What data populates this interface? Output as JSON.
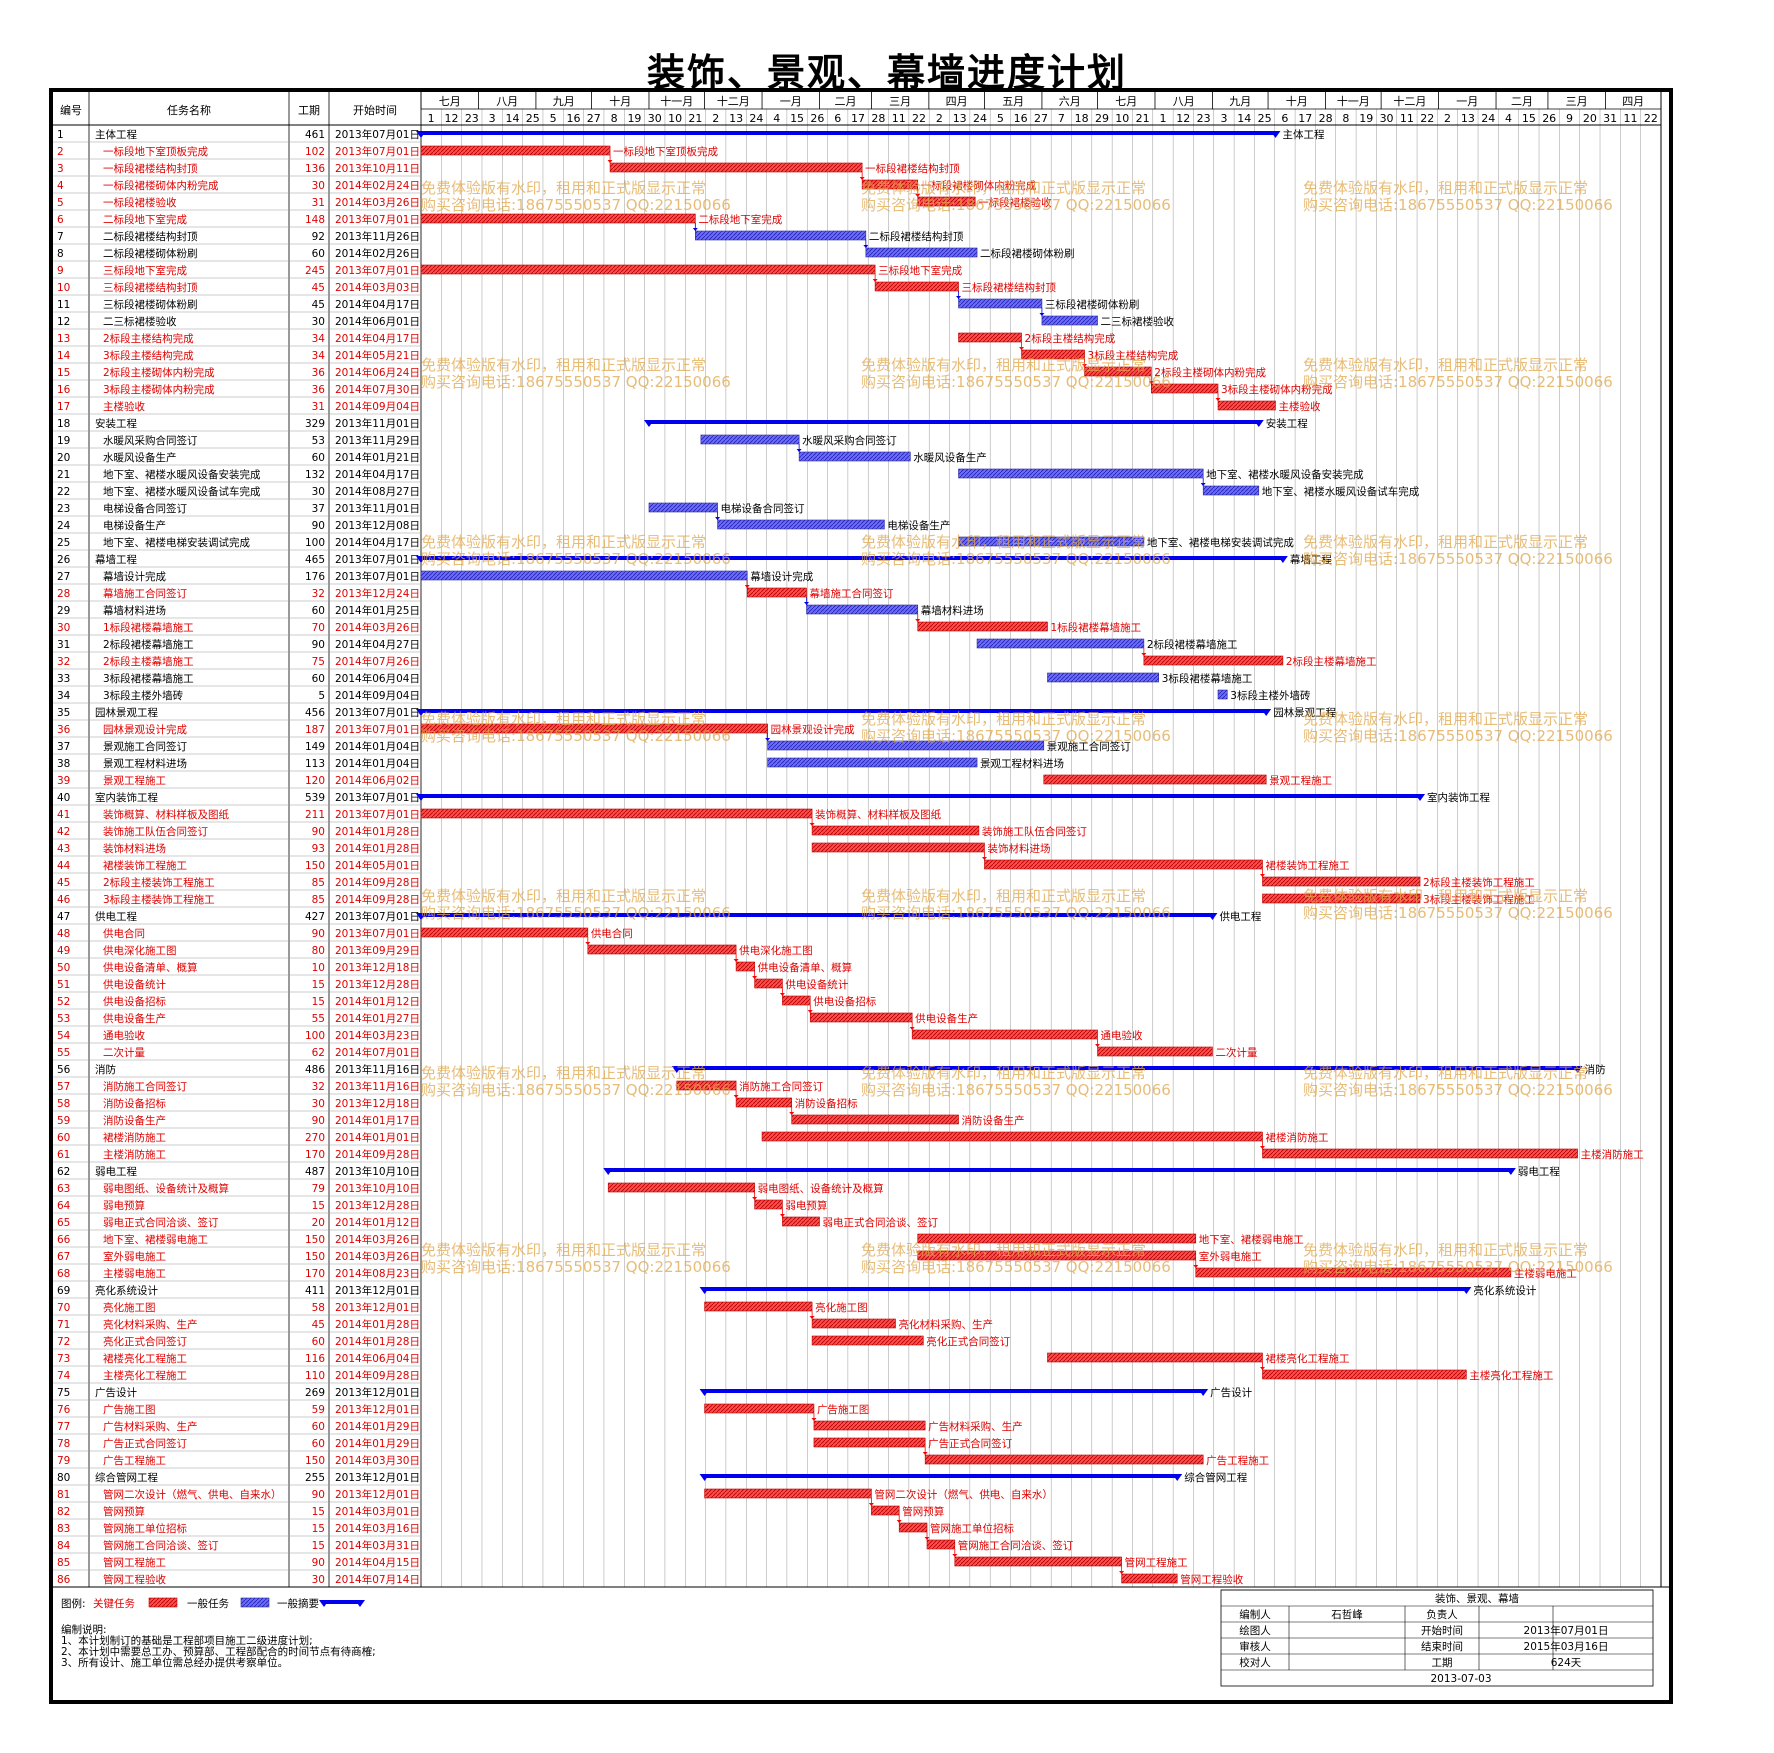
{
  "title": "装饰、景观、幕墙进度计划",
  "colors": {
    "critical": "#ff4d4d",
    "normal": "#6b6bff",
    "summary": "#0000ee",
    "critical_text": "#e00000",
    "link": "#ff0000"
  },
  "headers": {
    "id": "编号",
    "name": "任务名称",
    "dur": "工期",
    "start": "开始时间"
  },
  "months": [
    "七月",
    "八月",
    "九月",
    "十月",
    "十一月",
    "十二月",
    "一月",
    "二月",
    "三月",
    "四月",
    "五月",
    "六月",
    "七月",
    "八月",
    "九月",
    "十月",
    "十一月",
    "十二月",
    "一月",
    "二月",
    "三月",
    "四月"
  ],
  "ticks": [
    "1",
    "12",
    "23",
    "3",
    "14",
    "25",
    "5",
    "16",
    "27",
    "8",
    "19",
    "30",
    "10",
    "21",
    "2",
    "13",
    "24",
    "4",
    "15",
    "26",
    "6",
    "17",
    "28",
    "11",
    "22",
    "2",
    "13",
    "24",
    "5",
    "16",
    "27",
    "7",
    "18",
    "29",
    "10",
    "21",
    "1",
    "12",
    "23",
    "3",
    "14",
    "25",
    "6",
    "17",
    "28",
    "8",
    "19",
    "30",
    "11",
    "22",
    "2",
    "13",
    "24",
    "4",
    "15",
    "26",
    "9",
    "20",
    "31",
    "11",
    "22"
  ],
  "watermark": {
    "line1": "免费体验版有水印，租用和正式版显示正常",
    "line2": "购买咨询电话:18675550537 QQ:22150066"
  },
  "legend": {
    "label": "图例:",
    "critical": "关键任务",
    "normal": "一般任务",
    "summary": "一般摘要"
  },
  "notes": [
    "编制说明:",
    "1、本计划制订的基础是工程部项目施工二级进度计划;",
    "2、本计划中需要总工办、预算部、工程部配合的时间节点有待商榷;",
    "3、所有设计、施工单位需总经办提供考察单位。"
  ],
  "infobox": {
    "title": "装饰、景观、幕墙",
    "r1": [
      "编制人",
      "石哲峰",
      "负责人",
      ""
    ],
    "r2": [
      "绘图人",
      "",
      "开始时间",
      "2013年07月01日"
    ],
    "r3": [
      "审核人",
      "",
      "结束时间",
      "2015年03月16日"
    ],
    "r4": [
      "校对人",
      "",
      "工期",
      "624天"
    ],
    "date": "2013-07-03"
  },
  "chart_data": {
    "type": "gantt",
    "axis_start": "2013-07-01",
    "axis_end": "2015-04-30",
    "tasks": [
      {
        "id": "1",
        "name": "主体工程",
        "dur": 461,
        "start": "2013年07月01日",
        "kind": "summary",
        "label": "主体工程"
      },
      {
        "id": "2",
        "name": "一标段地下室顶板完成",
        "dur": 102,
        "start": "2013年07月01日",
        "kind": "critical",
        "label": "一标段地下室顶板完成"
      },
      {
        "id": "3",
        "name": "一标段裙楼结构封顶",
        "dur": 136,
        "start": "2013年10月11日",
        "kind": "critical",
        "label": "一标段裙楼结构封顶"
      },
      {
        "id": "4",
        "name": "一标段裙楼砌体内粉完成",
        "dur": 30,
        "start": "2014年02月24日",
        "kind": "critical",
        "label": "一标段裙楼砌体内粉完成"
      },
      {
        "id": "5",
        "name": "一标段裙楼验收",
        "dur": 31,
        "start": "2014年03月26日",
        "kind": "critical",
        "label": "一标段裙楼验收"
      },
      {
        "id": "6",
        "name": "二标段地下室完成",
        "dur": 148,
        "start": "2013年07月01日",
        "kind": "critical",
        "label": "二标段地下室完成"
      },
      {
        "id": "7",
        "name": "二标段裙楼结构封顶",
        "dur": 92,
        "start": "2013年11月26日",
        "kind": "normal",
        "label": "二标段裙楼结构封顶"
      },
      {
        "id": "8",
        "name": "二标段裙楼砌体粉刷",
        "dur": 60,
        "start": "2014年02月26日",
        "kind": "normal",
        "label": "二标段裙楼砌体粉刷"
      },
      {
        "id": "9",
        "name": "三标段地下室完成",
        "dur": 245,
        "start": "2013年07月01日",
        "kind": "critical",
        "label": "三标段地下室完成"
      },
      {
        "id": "10",
        "name": "三标段裙楼结构封顶",
        "dur": 45,
        "start": "2014年03月03日",
        "kind": "critical",
        "label": "三标段裙楼结构封顶"
      },
      {
        "id": "11",
        "name": "三标段裙楼砌体粉刷",
        "dur": 45,
        "start": "2014年04月17日",
        "kind": "normal",
        "label": "三标段裙楼砌体粉刷"
      },
      {
        "id": "12",
        "name": "二三标裙楼验收",
        "dur": 30,
        "start": "2014年06月01日",
        "kind": "normal",
        "label": "二三标裙楼验收"
      },
      {
        "id": "13",
        "name": "2标段主楼结构完成",
        "dur": 34,
        "start": "2014年04月17日",
        "kind": "critical",
        "label": "2标段主楼结构完成"
      },
      {
        "id": "14",
        "name": "3标段主楼结构完成",
        "dur": 34,
        "start": "2014年05月21日",
        "kind": "critical",
        "label": "3标段主楼结构完成"
      },
      {
        "id": "15",
        "name": "2标段主楼砌体内粉完成",
        "dur": 36,
        "start": "2014年06月24日",
        "kind": "critical",
        "label": "2标段主楼砌体内粉完成"
      },
      {
        "id": "16",
        "name": "3标段主楼砌体内粉完成",
        "dur": 36,
        "start": "2014年07月30日",
        "kind": "critical",
        "label": "3标段主楼砌体内粉完成"
      },
      {
        "id": "17",
        "name": "主楼验收",
        "dur": 31,
        "start": "2014年09月04日",
        "kind": "critical",
        "label": "主楼验收"
      },
      {
        "id": "18",
        "name": "安装工程",
        "dur": 329,
        "start": "2013年11月01日",
        "kind": "summary",
        "label": "安装工程"
      },
      {
        "id": "19",
        "name": "水暖风采购合同签订",
        "dur": 53,
        "start": "2013年11月29日",
        "kind": "normal",
        "label": "水暖风采购合同签订"
      },
      {
        "id": "20",
        "name": "水暖风设备生产",
        "dur": 60,
        "start": "2014年01月21日",
        "kind": "normal",
        "label": "水暖风设备生产"
      },
      {
        "id": "21",
        "name": "地下室、裙楼水暖风设备安装完成",
        "dur": 132,
        "start": "2014年04月17日",
        "kind": "normal",
        "label": "地下室、裙楼水暖风设备安装完成"
      },
      {
        "id": "22",
        "name": "地下室、裙楼水暖风设备试车完成",
        "dur": 30,
        "start": "2014年08月27日",
        "kind": "normal",
        "label": "地下室、裙楼水暖风设备试车完成"
      },
      {
        "id": "23",
        "name": "电梯设备合同签订",
        "dur": 37,
        "start": "2013年11月01日",
        "kind": "normal",
        "label": "电梯设备合同签订"
      },
      {
        "id": "24",
        "name": "电梯设备生产",
        "dur": 90,
        "start": "2013年12月08日",
        "kind": "normal",
        "label": "电梯设备生产"
      },
      {
        "id": "25",
        "name": "地下室、裙楼电梯安装调试完成",
        "dur": 100,
        "start": "2014年04月17日",
        "kind": "normal",
        "label": "地下室、裙楼电梯安装调试完成"
      },
      {
        "id": "26",
        "name": "幕墙工程",
        "dur": 465,
        "start": "2013年07月01日",
        "kind": "summary",
        "label": "幕墙工程"
      },
      {
        "id": "27",
        "name": "幕墙设计完成",
        "dur": 176,
        "start": "2013年07月01日",
        "kind": "normal",
        "label": "幕墙设计完成"
      },
      {
        "id": "28",
        "name": "幕墙施工合同签订",
        "dur": 32,
        "start": "2013年12月24日",
        "kind": "critical",
        "label": "幕墙施工合同签订"
      },
      {
        "id": "29",
        "name": "幕墙材料进场",
        "dur": 60,
        "start": "2014年01月25日",
        "kind": "normal",
        "label": "幕墙材料进场"
      },
      {
        "id": "30",
        "name": "1标段裙楼幕墙施工",
        "dur": 70,
        "start": "2014年03月26日",
        "kind": "critical",
        "label": "1标段裙楼幕墙施工"
      },
      {
        "id": "31",
        "name": "2标段裙楼幕墙施工",
        "dur": 90,
        "start": "2014年04月27日",
        "kind": "normal",
        "label": "2标段裙楼幕墙施工"
      },
      {
        "id": "32",
        "name": "2标段主楼幕墙施工",
        "dur": 75,
        "start": "2014年07月26日",
        "kind": "critical",
        "label": "2标段主楼幕墙施工"
      },
      {
        "id": "33",
        "name": "3标段裙楼幕墙施工",
        "dur": 60,
        "start": "2014年06月04日",
        "kind": "normal",
        "label": "3标段裙楼幕墙施工"
      },
      {
        "id": "34",
        "name": "3标段主楼外墙砖",
        "dur": 5,
        "start": "2014年09月04日",
        "kind": "normal",
        "label": "3标段主楼外墙砖"
      },
      {
        "id": "35",
        "name": "园林景观工程",
        "dur": 456,
        "start": "2013年07月01日",
        "kind": "summary",
        "label": "园林景观工程"
      },
      {
        "id": "36",
        "name": "园林景观设计完成",
        "dur": 187,
        "start": "2013年07月01日",
        "kind": "critical",
        "label": "园林景观设计完成"
      },
      {
        "id": "37",
        "name": "景观施工合同签订",
        "dur": 149,
        "start": "2014年01月04日",
        "kind": "normal",
        "label": "景观施工合同签订"
      },
      {
        "id": "38",
        "name": "景观工程材料进场",
        "dur": 113,
        "start": "2014年01月04日",
        "kind": "normal",
        "label": "景观工程材料进场"
      },
      {
        "id": "39",
        "name": "景观工程施工",
        "dur": 120,
        "start": "2014年06月02日",
        "kind": "critical",
        "label": "景观工程施工"
      },
      {
        "id": "40",
        "name": "室内装饰工程",
        "dur": 539,
        "start": "2013年07月01日",
        "kind": "summary",
        "label": "室内装饰工程"
      },
      {
        "id": "41",
        "name": "装饰概算、材料样板及图纸",
        "dur": 211,
        "start": "2013年07月01日",
        "kind": "critical",
        "label": "装饰概算、材料样板及图纸"
      },
      {
        "id": "42",
        "name": "装饰施工队伍合同签订",
        "dur": 90,
        "start": "2014年01月28日",
        "kind": "critical",
        "label": "装饰施工队伍合同签订"
      },
      {
        "id": "43",
        "name": "装饰材料进场",
        "dur": 93,
        "start": "2014年01月28日",
        "kind": "critical",
        "label": "装饰材料进场"
      },
      {
        "id": "44",
        "name": "裙楼装饰工程施工",
        "dur": 150,
        "start": "2014年05月01日",
        "kind": "critical",
        "label": "裙楼装饰工程施工"
      },
      {
        "id": "45",
        "name": "2标段主楼装饰工程施工",
        "dur": 85,
        "start": "2014年09月28日",
        "kind": "critical",
        "label": "2标段主楼装饰工程施工"
      },
      {
        "id": "46",
        "name": "3标段主楼装饰工程施工",
        "dur": 85,
        "start": "2014年09月28日",
        "kind": "critical",
        "label": "3标段主楼装饰工程施工"
      },
      {
        "id": "47",
        "name": "供电工程",
        "dur": 427,
        "start": "2013年07月01日",
        "kind": "summary",
        "label": "供电工程"
      },
      {
        "id": "48",
        "name": "供电合同",
        "dur": 90,
        "start": "2013年07月01日",
        "kind": "critical",
        "label": "供电合同"
      },
      {
        "id": "49",
        "name": "供电深化施工图",
        "dur": 80,
        "start": "2013年09月29日",
        "kind": "critical",
        "label": "供电深化施工图"
      },
      {
        "id": "50",
        "name": "供电设备清单、概算",
        "dur": 10,
        "start": "2013年12月18日",
        "kind": "critical",
        "label": "供电设备清单、概算"
      },
      {
        "id": "51",
        "name": "供电设备统计",
        "dur": 15,
        "start": "2013年12月28日",
        "kind": "critical",
        "label": "供电设备统计"
      },
      {
        "id": "52",
        "name": "供电设备招标",
        "dur": 15,
        "start": "2014年01月12日",
        "kind": "critical",
        "label": "供电设备招标"
      },
      {
        "id": "53",
        "name": "供电设备生产",
        "dur": 55,
        "start": "2014年01月27日",
        "kind": "critical",
        "label": "供电设备生产"
      },
      {
        "id": "54",
        "name": "通电验收",
        "dur": 100,
        "start": "2014年03月23日",
        "kind": "critical",
        "label": "通电验收"
      },
      {
        "id": "55",
        "name": "二次计量",
        "dur": 62,
        "start": "2014年07月01日",
        "kind": "critical",
        "label": "二次计量"
      },
      {
        "id": "56",
        "name": "消防",
        "dur": 486,
        "start": "2013年11月16日",
        "kind": "summary",
        "label": "消防"
      },
      {
        "id": "57",
        "name": "消防施工合同签订",
        "dur": 32,
        "start": "2013年11月16日",
        "kind": "critical",
        "label": "消防施工合同签订"
      },
      {
        "id": "58",
        "name": "消防设备招标",
        "dur": 30,
        "start": "2013年12月18日",
        "kind": "critical",
        "label": "消防设备招标"
      },
      {
        "id": "59",
        "name": "消防设备生产",
        "dur": 90,
        "start": "2014年01月17日",
        "kind": "critical",
        "label": "消防设备生产"
      },
      {
        "id": "60",
        "name": "裙楼消防施工",
        "dur": 270,
        "start": "2014年01月01日",
        "kind": "critical",
        "label": "裙楼消防施工"
      },
      {
        "id": "61",
        "name": "主楼消防施工",
        "dur": 170,
        "start": "2014年09月28日",
        "kind": "critical",
        "label": "主楼消防施工"
      },
      {
        "id": "62",
        "name": "弱电工程",
        "dur": 487,
        "start": "2013年10月10日",
        "kind": "summary",
        "label": "弱电工程"
      },
      {
        "id": "63",
        "name": "弱电图纸、设备统计及概算",
        "dur": 79,
        "start": "2013年10月10日",
        "kind": "critical",
        "label": "弱电图纸、设备统计及概算"
      },
      {
        "id": "64",
        "name": "弱电预算",
        "dur": 15,
        "start": "2013年12月28日",
        "kind": "critical",
        "label": "弱电预算"
      },
      {
        "id": "65",
        "name": "弱电正式合同洽谈、签订",
        "dur": 20,
        "start": "2014年01月12日",
        "kind": "critical",
        "label": "弱电正式合同洽谈、签订"
      },
      {
        "id": "66",
        "name": "地下室、裙楼弱电施工",
        "dur": 150,
        "start": "2014年03月26日",
        "kind": "critical",
        "label": "地下室、裙楼弱电施工"
      },
      {
        "id": "67",
        "name": "室外弱电施工",
        "dur": 150,
        "start": "2014年03月26日",
        "kind": "critical",
        "label": "室外弱电施工"
      },
      {
        "id": "68",
        "name": "主楼弱电施工",
        "dur": 170,
        "start": "2014年08月23日",
        "kind": "critical",
        "label": "主楼弱电施工"
      },
      {
        "id": "69",
        "name": "亮化系统设计",
        "dur": 411,
        "start": "2013年12月01日",
        "kind": "summary",
        "label": "亮化系统设计"
      },
      {
        "id": "70",
        "name": "亮化施工图",
        "dur": 58,
        "start": "2013年12月01日",
        "kind": "critical",
        "label": "亮化施工图"
      },
      {
        "id": "71",
        "name": "亮化材料采购、生产",
        "dur": 45,
        "start": "2014年01月28日",
        "kind": "critical",
        "label": "亮化材料采购、生产"
      },
      {
        "id": "72",
        "name": "亮化正式合同签订",
        "dur": 60,
        "start": "2014年01月28日",
        "kind": "critical",
        "label": "亮化正式合同签订"
      },
      {
        "id": "73",
        "name": "裙楼亮化工程施工",
        "dur": 116,
        "start": "2014年06月04日",
        "kind": "critical",
        "label": "裙楼亮化工程施工"
      },
      {
        "id": "74",
        "name": "主楼亮化工程施工",
        "dur": 110,
        "start": "2014年09月28日",
        "kind": "critical",
        "label": "主楼亮化工程施工"
      },
      {
        "id": "75",
        "name": "广告设计",
        "dur": 269,
        "start": "2013年12月01日",
        "kind": "summary",
        "label": "广告设计"
      },
      {
        "id": "76",
        "name": "广告施工图",
        "dur": 59,
        "start": "2013年12月01日",
        "kind": "critical",
        "label": "广告施工图"
      },
      {
        "id": "77",
        "name": "广告材料采购、生产",
        "dur": 60,
        "start": "2014年01月29日",
        "kind": "critical",
        "label": "广告材料采购、生产"
      },
      {
        "id": "78",
        "name": "广告正式合同签订",
        "dur": 60,
        "start": "2014年01月29日",
        "kind": "critical",
        "label": "广告正式合同签订"
      },
      {
        "id": "79",
        "name": "广告工程施工",
        "dur": 150,
        "start": "2014年03月30日",
        "kind": "critical",
        "label": "广告工程施工"
      },
      {
        "id": "80",
        "name": "综合管网工程",
        "dur": 255,
        "start": "2013年12月01日",
        "kind": "summary",
        "label": "综合管网工程"
      },
      {
        "id": "81",
        "name": "管网二次设计（燃气、供电、自来水）",
        "dur": 90,
        "start": "2013年12月01日",
        "kind": "critical",
        "label": "管网二次设计（燃气、供电、自来水）"
      },
      {
        "id": "82",
        "name": "管网预算",
        "dur": 15,
        "start": "2014年03月01日",
        "kind": "critical",
        "label": "管网预算"
      },
      {
        "id": "83",
        "name": "管网施工单位招标",
        "dur": 15,
        "start": "2014年03月16日",
        "kind": "critical",
        "label": "管网施工单位招标"
      },
      {
        "id": "84",
        "name": "管网施工合同洽谈、签订",
        "dur": 15,
        "start": "2014年03月31日",
        "kind": "critical",
        "label": "管网施工合同洽谈、签订"
      },
      {
        "id": "85",
        "name": "管网工程施工",
        "dur": 90,
        "start": "2014年04月15日",
        "kind": "critical",
        "label": "管网工程施工"
      },
      {
        "id": "86",
        "name": "管网工程验收",
        "dur": 30,
        "start": "2014年07月14日",
        "kind": "critical",
        "label": "管网工程验收"
      }
    ]
  }
}
